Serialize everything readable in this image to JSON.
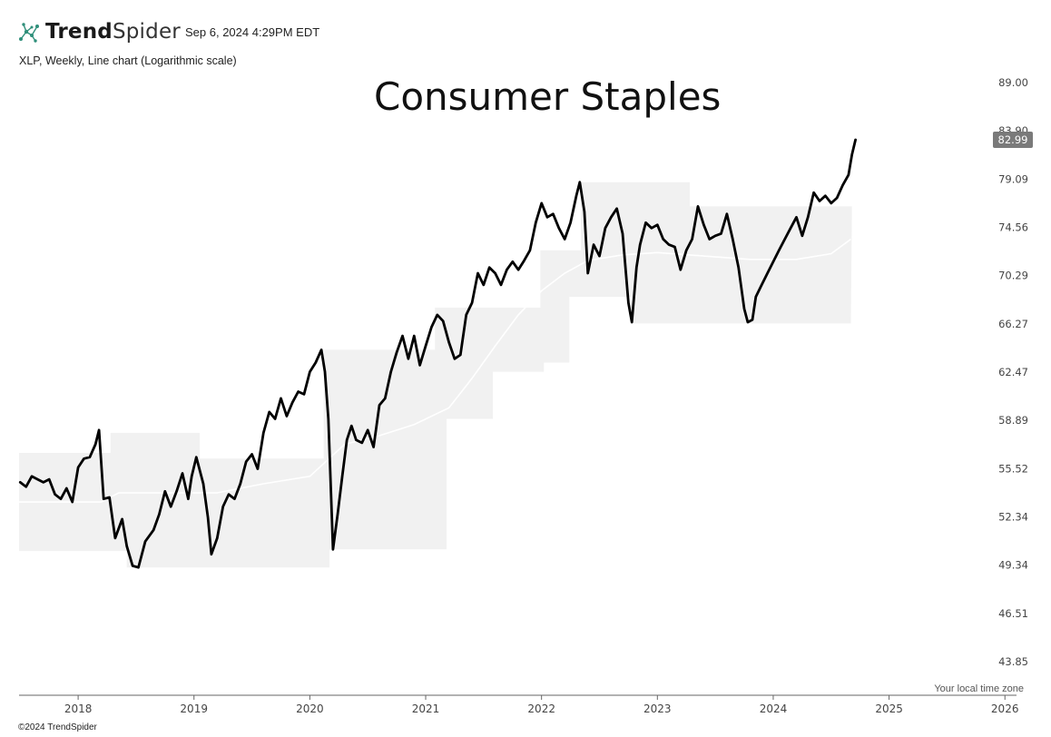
{
  "brand": {
    "name_bold": "Trend",
    "name_light": "Spider",
    "icon": "trendspider-logo-icon"
  },
  "timestamp": "Sep 6, 2024 4:29PM EDT",
  "subtitle": "XLP, Weekly, Line chart (Logarithmic scale)",
  "timezone_note": "Your local time zone",
  "copyright": "©2024 TrendSpider",
  "chart_data": {
    "type": "line",
    "title": "Consumer Staples",
    "symbol": "XLP",
    "scale": "logarithmic",
    "ylim": [
      43.0,
      90.0
    ],
    "y_ticks": [
      43.85,
      46.51,
      49.34,
      52.34,
      55.52,
      58.89,
      62.47,
      66.27,
      70.29,
      74.56,
      79.09,
      83.9,
      89.0
    ],
    "y_tick_labels": [
      "43.85",
      "46.51",
      "49.34",
      "52.34",
      "55.52",
      "58.89",
      "62.47",
      "66.27",
      "70.29",
      "74.56",
      "79.09",
      "83.90",
      "89.00"
    ],
    "x_range": [
      2017.49,
      2026.1
    ],
    "x_ticks": [
      2018,
      2019,
      2020,
      2021,
      2022,
      2023,
      2024,
      2025,
      2026
    ],
    "x_tick_labels": [
      "2018",
      "2019",
      "2020",
      "2021",
      "2022",
      "2023",
      "2024",
      "2025",
      "2026"
    ],
    "last_price": 82.99,
    "last_price_label": "82.99",
    "series": [
      {
        "name": "XLP",
        "points": [
          [
            2017.5,
            54.6
          ],
          [
            2017.55,
            54.3
          ],
          [
            2017.6,
            55.0
          ],
          [
            2017.65,
            54.8
          ],
          [
            2017.7,
            54.6
          ],
          [
            2017.75,
            54.8
          ],
          [
            2017.8,
            53.8
          ],
          [
            2017.85,
            53.5
          ],
          [
            2017.9,
            54.2
          ],
          [
            2017.95,
            53.3
          ],
          [
            2018.0,
            55.6
          ],
          [
            2018.05,
            56.2
          ],
          [
            2018.1,
            56.3
          ],
          [
            2018.15,
            57.2
          ],
          [
            2018.18,
            58.2
          ],
          [
            2018.22,
            53.5
          ],
          [
            2018.27,
            53.6
          ],
          [
            2018.32,
            51.0
          ],
          [
            2018.38,
            52.2
          ],
          [
            2018.42,
            50.5
          ],
          [
            2018.47,
            49.3
          ],
          [
            2018.52,
            49.2
          ],
          [
            2018.58,
            50.8
          ],
          [
            2018.65,
            51.5
          ],
          [
            2018.7,
            52.5
          ],
          [
            2018.75,
            54.0
          ],
          [
            2018.8,
            53.0
          ],
          [
            2018.85,
            54.0
          ],
          [
            2018.9,
            55.2
          ],
          [
            2018.95,
            53.5
          ],
          [
            2018.98,
            55.0
          ],
          [
            2019.02,
            56.3
          ],
          [
            2019.08,
            54.5
          ],
          [
            2019.12,
            52.3
          ],
          [
            2019.15,
            50.0
          ],
          [
            2019.2,
            51.0
          ],
          [
            2019.25,
            53.0
          ],
          [
            2019.3,
            53.8
          ],
          [
            2019.35,
            53.5
          ],
          [
            2019.4,
            54.5
          ],
          [
            2019.45,
            56.0
          ],
          [
            2019.5,
            56.5
          ],
          [
            2019.55,
            55.5
          ],
          [
            2019.6,
            58.0
          ],
          [
            2019.65,
            59.5
          ],
          [
            2019.7,
            59.0
          ],
          [
            2019.75,
            60.5
          ],
          [
            2019.8,
            59.2
          ],
          [
            2019.85,
            60.2
          ],
          [
            2019.9,
            61.0
          ],
          [
            2019.95,
            60.8
          ],
          [
            2020.0,
            62.5
          ],
          [
            2020.05,
            63.2
          ],
          [
            2020.1,
            64.2
          ],
          [
            2020.13,
            62.5
          ],
          [
            2020.16,
            59.0
          ],
          [
            2020.2,
            50.3
          ],
          [
            2020.24,
            52.5
          ],
          [
            2020.28,
            55.0
          ],
          [
            2020.32,
            57.5
          ],
          [
            2020.36,
            58.5
          ],
          [
            2020.4,
            57.5
          ],
          [
            2020.45,
            57.3
          ],
          [
            2020.5,
            58.2
          ],
          [
            2020.55,
            57.0
          ],
          [
            2020.6,
            60.0
          ],
          [
            2020.65,
            60.5
          ],
          [
            2020.7,
            62.5
          ],
          [
            2020.75,
            64.0
          ],
          [
            2020.8,
            65.3
          ],
          [
            2020.85,
            63.5
          ],
          [
            2020.9,
            65.3
          ],
          [
            2020.95,
            63.0
          ],
          [
            2021.0,
            64.5
          ],
          [
            2021.05,
            66.0
          ],
          [
            2021.1,
            67.0
          ],
          [
            2021.15,
            66.5
          ],
          [
            2021.2,
            64.8
          ],
          [
            2021.25,
            63.5
          ],
          [
            2021.3,
            63.8
          ],
          [
            2021.35,
            67.0
          ],
          [
            2021.4,
            68.0
          ],
          [
            2021.45,
            70.5
          ],
          [
            2021.5,
            69.5
          ],
          [
            2021.55,
            71.0
          ],
          [
            2021.6,
            70.5
          ],
          [
            2021.65,
            69.5
          ],
          [
            2021.7,
            70.8
          ],
          [
            2021.75,
            71.5
          ],
          [
            2021.8,
            70.8
          ],
          [
            2021.85,
            71.6
          ],
          [
            2021.9,
            72.5
          ],
          [
            2021.95,
            75.0
          ],
          [
            2022.0,
            76.8
          ],
          [
            2022.05,
            75.5
          ],
          [
            2022.1,
            75.8
          ],
          [
            2022.15,
            74.5
          ],
          [
            2022.2,
            73.5
          ],
          [
            2022.25,
            75.0
          ],
          [
            2022.3,
            77.5
          ],
          [
            2022.33,
            78.8
          ],
          [
            2022.37,
            76.0
          ],
          [
            2022.4,
            70.5
          ],
          [
            2022.45,
            73.0
          ],
          [
            2022.5,
            72.0
          ],
          [
            2022.55,
            74.5
          ],
          [
            2022.6,
            75.5
          ],
          [
            2022.65,
            76.3
          ],
          [
            2022.7,
            74.0
          ],
          [
            2022.75,
            68.0
          ],
          [
            2022.78,
            66.4
          ],
          [
            2022.82,
            71.0
          ],
          [
            2022.85,
            73.0
          ],
          [
            2022.9,
            75.0
          ],
          [
            2022.95,
            74.5
          ],
          [
            2023.0,
            74.8
          ],
          [
            2023.05,
            73.5
          ],
          [
            2023.1,
            73.0
          ],
          [
            2023.15,
            72.8
          ],
          [
            2023.2,
            70.8
          ],
          [
            2023.25,
            72.5
          ],
          [
            2023.3,
            73.5
          ],
          [
            2023.35,
            76.5
          ],
          [
            2023.4,
            74.8
          ],
          [
            2023.45,
            73.5
          ],
          [
            2023.5,
            73.8
          ],
          [
            2023.55,
            74.0
          ],
          [
            2023.6,
            75.8
          ],
          [
            2023.65,
            73.5
          ],
          [
            2023.7,
            71.0
          ],
          [
            2023.75,
            67.5
          ],
          [
            2023.78,
            66.4
          ],
          [
            2023.82,
            66.6
          ],
          [
            2023.85,
            68.5
          ],
          [
            2023.9,
            69.5
          ],
          [
            2023.95,
            70.5
          ],
          [
            2024.0,
            71.5
          ],
          [
            2024.05,
            72.5
          ],
          [
            2024.1,
            73.5
          ],
          [
            2024.15,
            74.5
          ],
          [
            2024.2,
            75.5
          ],
          [
            2024.25,
            73.8
          ],
          [
            2024.3,
            75.5
          ],
          [
            2024.35,
            77.8
          ],
          [
            2024.4,
            77.0
          ],
          [
            2024.45,
            77.5
          ],
          [
            2024.5,
            76.8
          ],
          [
            2024.55,
            77.3
          ],
          [
            2024.6,
            78.5
          ],
          [
            2024.65,
            79.5
          ],
          [
            2024.68,
            81.5
          ],
          [
            2024.71,
            82.99
          ]
        ]
      },
      {
        "name": "Range band upper",
        "points": [
          [
            2017.49,
            56.6
          ],
          [
            2018.27,
            56.6
          ],
          [
            2018.28,
            58.0
          ],
          [
            2019.04,
            58.0
          ],
          [
            2019.05,
            56.2
          ],
          [
            2020.11,
            56.2
          ],
          [
            2020.12,
            64.2
          ],
          [
            2021.07,
            64.2
          ],
          [
            2021.08,
            67.6
          ],
          [
            2021.98,
            67.6
          ],
          [
            2021.99,
            72.5
          ],
          [
            2022.33,
            72.5
          ],
          [
            2022.34,
            78.8
          ],
          [
            2023.27,
            78.8
          ],
          [
            2023.28,
            76.5
          ],
          [
            2024.67,
            76.5
          ],
          [
            2024.68,
            76.5
          ]
        ]
      },
      {
        "name": "Range band lower",
        "points": [
          [
            2017.49,
            50.2
          ],
          [
            2018.42,
            50.2
          ],
          [
            2018.43,
            49.2
          ],
          [
            2020.17,
            49.2
          ],
          [
            2020.18,
            50.3
          ],
          [
            2021.18,
            50.3
          ],
          [
            2021.19,
            59.0
          ],
          [
            2021.58,
            59.0
          ],
          [
            2021.59,
            62.5
          ],
          [
            2022.02,
            62.5
          ],
          [
            2022.03,
            63.2
          ],
          [
            2022.24,
            63.2
          ],
          [
            2022.25,
            68.5
          ],
          [
            2022.77,
            68.5
          ],
          [
            2022.78,
            66.3
          ],
          [
            2024.67,
            66.3
          ]
        ]
      },
      {
        "name": "Range band middle",
        "points": [
          [
            2017.49,
            53.3
          ],
          [
            2018.2,
            53.3
          ],
          [
            2018.35,
            53.9
          ],
          [
            2019.2,
            53.9
          ],
          [
            2019.6,
            54.5
          ],
          [
            2020.0,
            55.0
          ],
          [
            2020.3,
            57.2
          ],
          [
            2020.6,
            57.8
          ],
          [
            2020.9,
            58.6
          ],
          [
            2021.2,
            59.8
          ],
          [
            2021.4,
            62.0
          ],
          [
            2021.6,
            64.5
          ],
          [
            2021.8,
            67.0
          ],
          [
            2022.0,
            69.0
          ],
          [
            2022.2,
            70.5
          ],
          [
            2022.4,
            71.6
          ],
          [
            2022.7,
            72.1
          ],
          [
            2023.0,
            72.3
          ],
          [
            2023.4,
            72.0
          ],
          [
            2023.8,
            71.7
          ],
          [
            2024.2,
            71.7
          ],
          [
            2024.5,
            72.2
          ],
          [
            2024.67,
            73.5
          ]
        ]
      }
    ]
  }
}
